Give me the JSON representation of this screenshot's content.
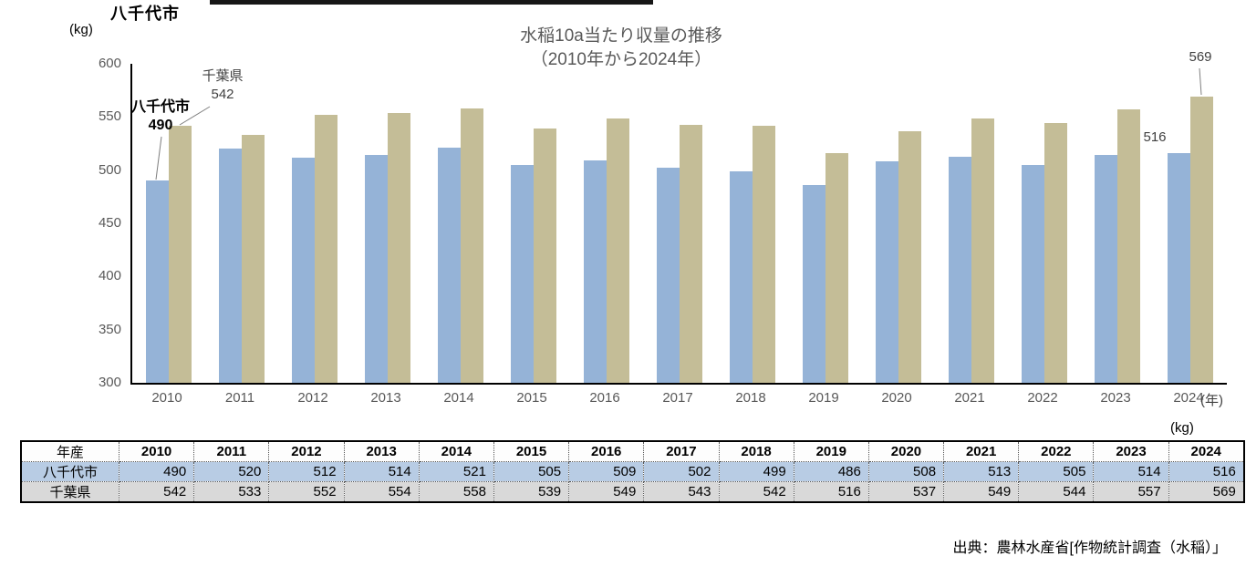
{
  "page": {
    "top_title": "八千代市",
    "chart_unit_label": "(kg)",
    "table_unit_label": "(kg)",
    "year_axis_suffix": "(年)"
  },
  "chart_data": {
    "type": "bar",
    "title_line1": "水稲10a当たり収量の推移",
    "title_line2": "（2010年から2024年）",
    "categories": [
      "2010",
      "2011",
      "2012",
      "2013",
      "2014",
      "2015",
      "2016",
      "2017",
      "2018",
      "2019",
      "2020",
      "2021",
      "2022",
      "2023",
      "2024"
    ],
    "series": [
      {
        "name": "八千代市",
        "color": "#95B3D7",
        "values": [
          490,
          520,
          512,
          514,
          521,
          505,
          509,
          502,
          499,
          486,
          508,
          513,
          505,
          514,
          516
        ]
      },
      {
        "name": "千葉県",
        "color": "#C4BD97",
        "values": [
          542,
          533,
          552,
          554,
          558,
          539,
          549,
          543,
          542,
          516,
          537,
          549,
          544,
          557,
          569
        ]
      }
    ],
    "ylim": [
      300,
      600
    ],
    "yticks": [
      300,
      350,
      400,
      450,
      500,
      550,
      600
    ],
    "grid": false,
    "legend": "none",
    "annotations": {
      "pref_label": "千葉県",
      "pref_first_value": "542",
      "city_label": "八千代市",
      "city_first_value": "490",
      "city_last_value": "516",
      "pref_last_value": "569"
    }
  },
  "table": {
    "corner_label": "年産",
    "years": [
      "2010",
      "2011",
      "2012",
      "2013",
      "2014",
      "2015",
      "2016",
      "2017",
      "2018",
      "2019",
      "2020",
      "2021",
      "2022",
      "2023",
      "2024"
    ],
    "rows": [
      {
        "label": "八千代市",
        "bg": "#B8CCE4",
        "values": [
          "490",
          "520",
          "512",
          "514",
          "521",
          "505",
          "509",
          "502",
          "499",
          "486",
          "508",
          "513",
          "505",
          "514",
          "516"
        ]
      },
      {
        "label": "千葉県",
        "bg": "#D9D9D9",
        "values": [
          "542",
          "533",
          "552",
          "554",
          "558",
          "539",
          "549",
          "543",
          "542",
          "516",
          "537",
          "549",
          "544",
          "557",
          "569"
        ]
      }
    ]
  },
  "source_text": "出典：農林水産省[作物統計調査（水稲）」"
}
